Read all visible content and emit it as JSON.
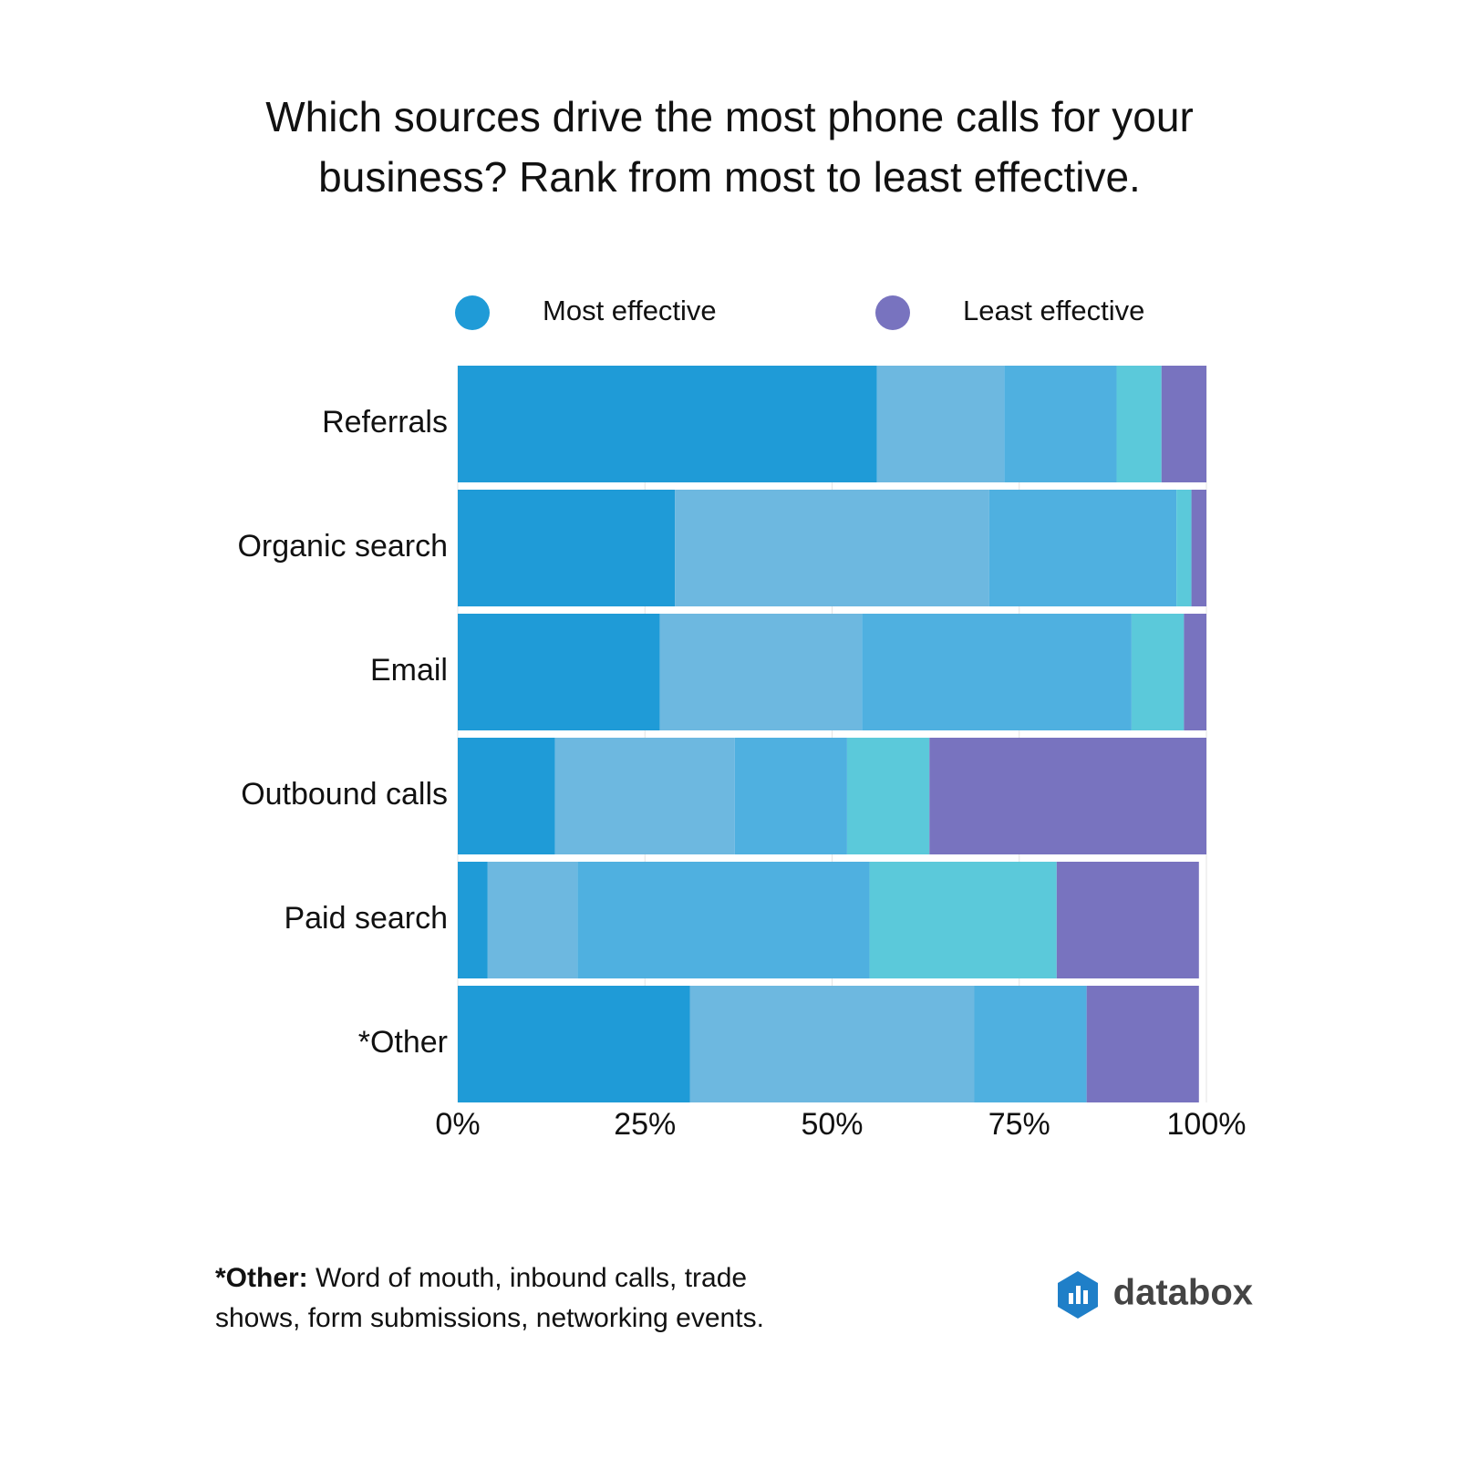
{
  "chart_data": {
    "type": "stacked-barh",
    "title": "Which sources drive the most phone calls for your business? Rank from most to least effective.",
    "categories": [
      "Referrals",
      "Organic search",
      "Email",
      "Outbound calls",
      "Paid search",
      "*Other"
    ],
    "series": [
      {
        "name": "Most effective",
        "color": "#1f9bd7",
        "values": [
          56,
          29,
          27,
          13,
          4,
          31
        ]
      },
      {
        "color": "#6db8e0",
        "values": [
          17,
          42,
          27,
          24,
          12,
          38
        ]
      },
      {
        "color": "#4fb0e0",
        "values": [
          15,
          25,
          36,
          15,
          39,
          15
        ]
      },
      {
        "color": "#5bc9da",
        "values": [
          6,
          2,
          7,
          11,
          25,
          0
        ]
      },
      {
        "name": "Least effective",
        "color": "#7873bf",
        "values": [
          6,
          2,
          3,
          37,
          19,
          15
        ]
      }
    ],
    "xlim": [
      0,
      100
    ],
    "xticks": [
      {
        "value": 0,
        "label": "0%"
      },
      {
        "value": 25,
        "label": "25%"
      },
      {
        "value": 50,
        "label": "50%"
      },
      {
        "value": 75,
        "label": "75%"
      },
      {
        "value": 100,
        "label": "100%"
      }
    ],
    "grid": true
  },
  "footnote": {
    "label": "*Other:",
    "text": "Word of mouth, inbound calls, trade shows, form submissions, networking events."
  },
  "brand": "databox"
}
